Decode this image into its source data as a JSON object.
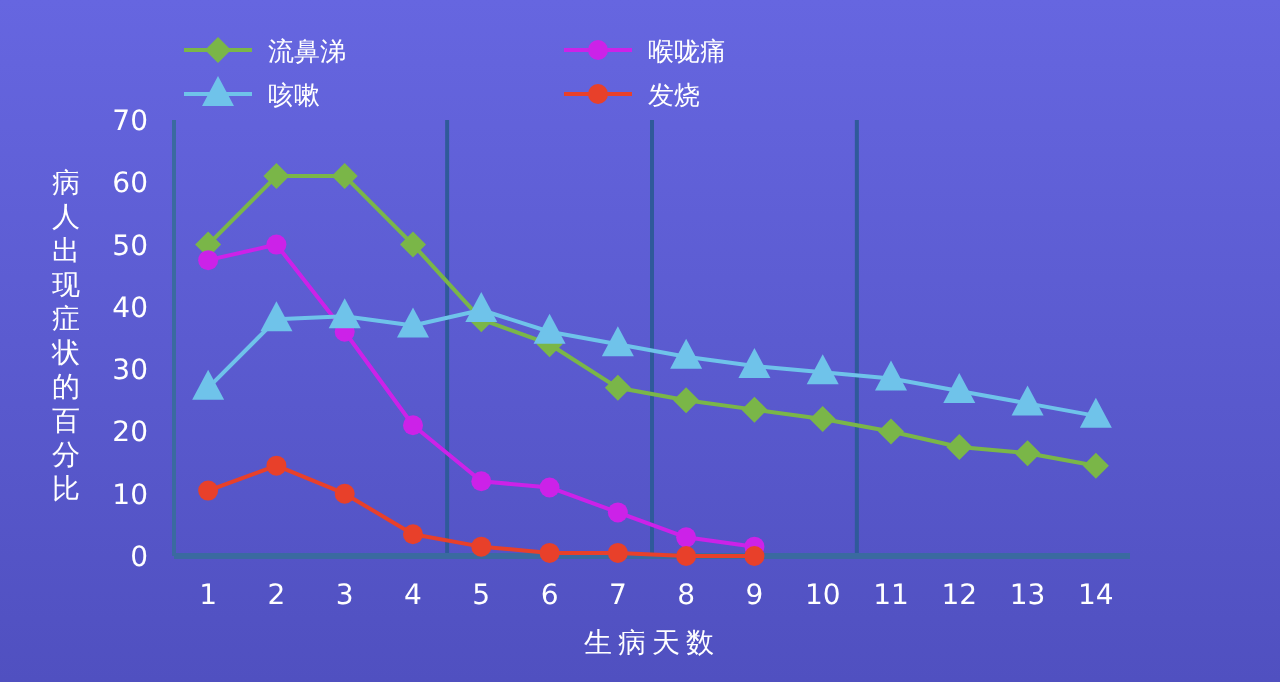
{
  "chart_data": {
    "type": "line",
    "xlabel": "生病天数",
    "ylabel": "病人出现症状的百分比",
    "x": [
      1,
      2,
      3,
      4,
      5,
      6,
      7,
      8,
      9,
      10,
      11,
      12,
      13,
      14
    ],
    "xlim": [
      0.5,
      14.5
    ],
    "xticks": [
      1,
      2,
      3,
      4,
      5,
      6,
      7,
      8,
      9,
      10,
      11,
      12,
      13,
      14
    ],
    "ylim": [
      0,
      70
    ],
    "yticks": [
      0,
      10,
      20,
      30,
      40,
      50,
      60,
      70
    ],
    "grid": false,
    "legend": "top left",
    "ref_lines": [
      {
        "axis": "x",
        "value": 4.5,
        "color": "#2f5a9a"
      },
      {
        "axis": "x",
        "value": 7.5,
        "color": "#2f5a9a"
      },
      {
        "axis": "x",
        "value": 10.5,
        "color": "#2f5a9a"
      }
    ],
    "series": [
      {
        "name": "流鼻涕",
        "color": "#7ab648",
        "marker": "diamond",
        "values": [
          50,
          61,
          61,
          50,
          38,
          34,
          27,
          25,
          23.5,
          22,
          20,
          17.5,
          16.5,
          14.5
        ]
      },
      {
        "name": "喉咙痛",
        "color": "#cc22e8",
        "marker": "circle",
        "values": [
          47.5,
          50,
          36,
          21,
          12,
          11,
          7,
          3,
          1.5,
          null,
          null,
          null,
          null,
          null
        ]
      },
      {
        "name": "咳嗽",
        "color": "#6fc3ea",
        "marker": "triangle",
        "values": [
          27,
          38,
          38.5,
          37,
          39.5,
          36,
          34,
          32,
          30.5,
          29.5,
          28.5,
          26.5,
          24.5,
          22.5
        ]
      },
      {
        "name": "发烧",
        "color": "#e8402a",
        "marker": "circle",
        "values": [
          10.5,
          14.5,
          10,
          3.5,
          1.5,
          0.5,
          0.5,
          0,
          0,
          null,
          null,
          null,
          null,
          null
        ]
      }
    ]
  }
}
